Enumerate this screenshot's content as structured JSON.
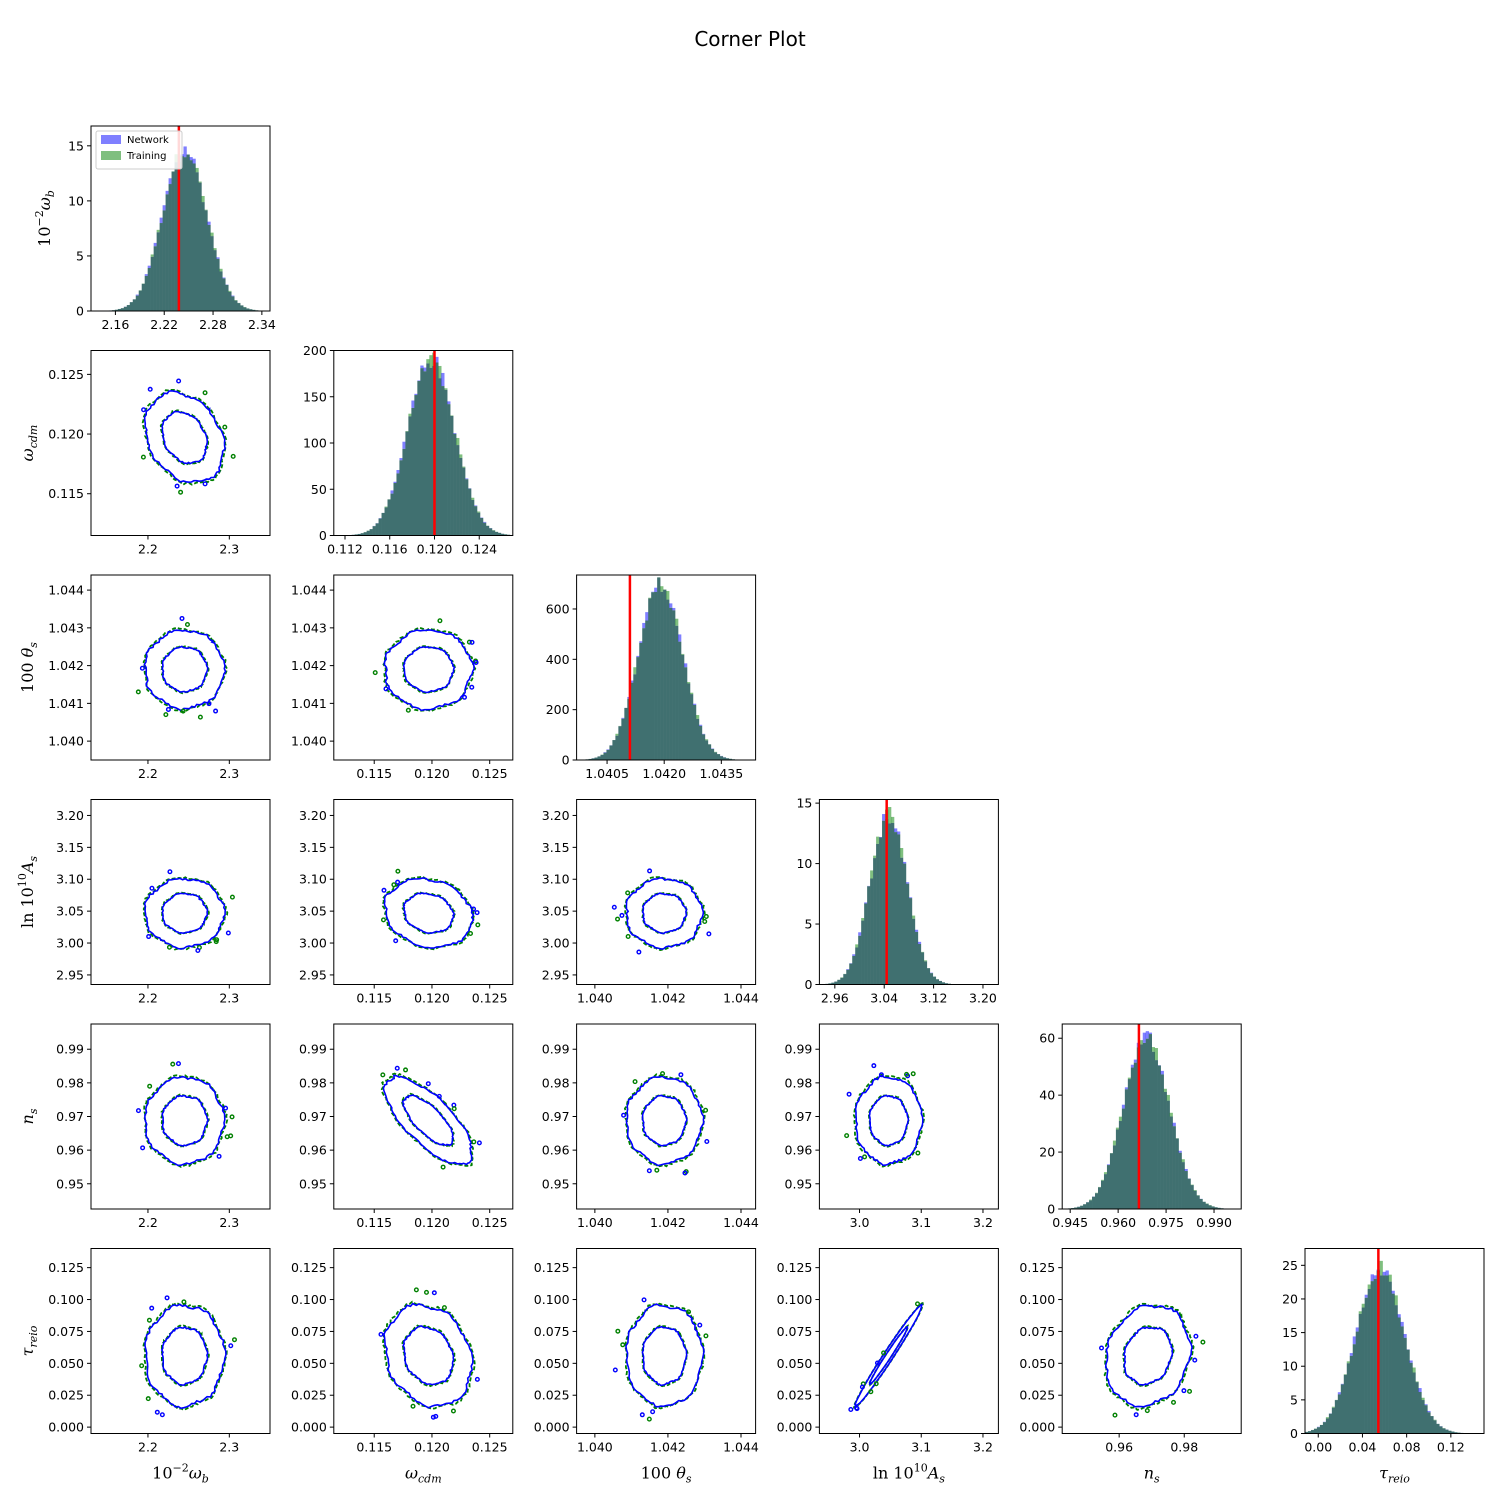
{
  "title": "Corner Plot",
  "chart_data": {
    "type": "corner",
    "title": "Corner Plot",
    "legend": {
      "placement": "top-left (first panel)",
      "entries": [
        {
          "label": "Network",
          "color": "#0000ff"
        },
        {
          "label": "Training",
          "color": "#008000"
        }
      ]
    },
    "colors": {
      "network": "#0000ff",
      "training": "#008000",
      "overlap": "#407070",
      "truth": "#ff0000"
    },
    "params": [
      {
        "key": "omega_b",
        "label_prefix": "10",
        "label_sup": "−2",
        "label_main": "ω",
        "label_sub": "b",
        "mean": 2.245,
        "sigma": 0.027,
        "truth": 2.238,
        "range": [
          2.13,
          2.35
        ],
        "diag_ylim": [
          0,
          16.8
        ],
        "diag_yticks": [
          "0",
          "5",
          "10",
          "15"
        ],
        "diag_ytick_vals": [
          0,
          5,
          10,
          15
        ],
        "diag_xticks": [
          "2.16",
          "2.22",
          "2.28",
          "2.34"
        ],
        "diag_xtick_vals": [
          2.16,
          2.22,
          2.28,
          2.34
        ],
        "diag_range": [
          2.13,
          2.35
        ],
        "peak": 14.7,
        "xticks": [
          "2.2",
          "2.3"
        ],
        "xtick_vals": [
          2.2,
          2.3
        ],
        "yticks": [],
        "ytick_vals": []
      },
      {
        "key": "omega_cdm",
        "label_prefix": "",
        "label_sup": "",
        "label_main": "ω",
        "label_sub": "cdm",
        "mean": 0.1197,
        "sigma": 0.0021,
        "truth": 0.12,
        "range": [
          0.1115,
          0.127
        ],
        "diag_ylim": [
          0,
          200
        ],
        "diag_yticks": [
          "0",
          "50",
          "100",
          "150",
          "200"
        ],
        "diag_ytick_vals": [
          0,
          50,
          100,
          150,
          200
        ],
        "diag_xticks": [
          "0.112",
          "0.116",
          "0.120",
          "0.124"
        ],
        "diag_xtick_vals": [
          0.112,
          0.116,
          0.12,
          0.124
        ],
        "diag_range": [
          0.111,
          0.127
        ],
        "peak": 190,
        "xticks": [
          "0.115",
          "0.120",
          "0.125"
        ],
        "xtick_vals": [
          0.115,
          0.12,
          0.125
        ],
        "yticks": [
          "0.115",
          "0.120",
          "0.125"
        ],
        "ytick_vals": [
          0.115,
          0.12,
          0.125
        ]
      },
      {
        "key": "theta_s",
        "label_prefix": "100",
        "label_sup": "",
        "label_main": "θ",
        "label_sub": "s",
        "mean": 1.0419,
        "sigma": 0.00058,
        "truth": 1.0411,
        "range": [
          1.0395,
          1.0444
        ],
        "diag_ylim": [
          0,
          735
        ],
        "diag_yticks": [
          "0",
          "200",
          "400",
          "600"
        ],
        "diag_ytick_vals": [
          0,
          200,
          400,
          600
        ],
        "diag_xticks": [
          "1.0405",
          "1.0420",
          "1.0435"
        ],
        "diag_xtick_vals": [
          1.0405,
          1.042,
          1.0435
        ],
        "diag_range": [
          1.0397,
          1.0444
        ],
        "peak": 700,
        "xticks": [
          "1.040",
          "1.042",
          "1.044"
        ],
        "xtick_vals": [
          1.04,
          1.042,
          1.044
        ],
        "yticks": [
          "1.040",
          "1.041",
          "1.042",
          "1.043",
          "1.044"
        ],
        "ytick_vals": [
          1.04,
          1.041,
          1.042,
          1.043,
          1.044
        ]
      },
      {
        "key": "ln10As",
        "label_prefix": "ln 10",
        "label_sup": "10",
        "label_main": "A",
        "label_sub": "s",
        "mean": 3.047,
        "sigma": 0.03,
        "truth": 3.044,
        "range": [
          2.935,
          3.225
        ],
        "diag_ylim": [
          0,
          15.3
        ],
        "diag_yticks": [
          "0",
          "5",
          "10",
          "15"
        ],
        "diag_ytick_vals": [
          0,
          5,
          10,
          15
        ],
        "diag_xticks": [
          "2.96",
          "3.04",
          "3.12",
          "3.20"
        ],
        "diag_xtick_vals": [
          2.96,
          3.04,
          3.12,
          3.2
        ],
        "diag_range": [
          2.935,
          3.225
        ],
        "peak": 14.0,
        "xticks": [
          "3.0",
          "3.1",
          "3.2"
        ],
        "xtick_vals": [
          3.0,
          3.1,
          3.2
        ],
        "yticks": [
          "2.95",
          "3.00",
          "3.05",
          "3.10",
          "3.15",
          "3.20"
        ],
        "ytick_vals": [
          2.95,
          3.0,
          3.05,
          3.1,
          3.15,
          3.2
        ]
      },
      {
        "key": "n_s",
        "label_prefix": "",
        "label_sup": "",
        "label_main": "n",
        "label_sub": "s",
        "mean": 0.9688,
        "sigma": 0.0072,
        "truth": 0.9665,
        "range": [
          0.9425,
          0.9975
        ],
        "diag_ylim": [
          0,
          65
        ],
        "diag_yticks": [
          "0",
          "20",
          "40",
          "60"
        ],
        "diag_ytick_vals": [
          0,
          20,
          40,
          60
        ],
        "diag_xticks": [
          "0.945",
          "0.960",
          "0.975",
          "0.990"
        ],
        "diag_xtick_vals": [
          0.945,
          0.96,
          0.975,
          0.99
        ],
        "diag_range": [
          0.9425,
          0.9985
        ],
        "peak": 60,
        "xticks": [
          "0.96",
          "0.98"
        ],
        "xtick_vals": [
          0.96,
          0.98
        ],
        "yticks": [
          "0.95",
          "0.96",
          "0.97",
          "0.98",
          "0.99"
        ],
        "ytick_vals": [
          0.95,
          0.96,
          0.97,
          0.98,
          0.99
        ]
      },
      {
        "key": "tau_reio",
        "label_prefix": "",
        "label_sup": "",
        "label_main": "τ",
        "label_sub": "reio",
        "mean": 0.056,
        "sigma": 0.022,
        "truth": 0.0544,
        "range": [
          -0.005,
          0.14
        ],
        "diag_ylim": [
          0,
          27.5
        ],
        "diag_yticks": [
          "0",
          "5",
          "10",
          "15",
          "20",
          "25"
        ],
        "diag_ytick_vals": [
          0,
          5,
          10,
          15,
          20,
          25
        ],
        "diag_xticks": [
          "0.00",
          "0.04",
          "0.08",
          "0.12"
        ],
        "diag_xtick_vals": [
          0.0,
          0.04,
          0.08,
          0.12
        ],
        "diag_range": [
          -0.012,
          0.15
        ],
        "peak": 24.5,
        "xticks": [],
        "xtick_vals": [],
        "yticks": [
          "0.000",
          "0.025",
          "0.050",
          "0.075",
          "0.100",
          "0.125"
        ],
        "ytick_vals": [
          0.0,
          0.025,
          0.05,
          0.075,
          0.1,
          0.125
        ]
      }
    ],
    "correlations": [
      {
        "i": 1,
        "j": 0,
        "rho": -0.25
      },
      {
        "i": 2,
        "j": 0,
        "rho": 0.0
      },
      {
        "i": 2,
        "j": 1,
        "rho": 0.0
      },
      {
        "i": 3,
        "j": 0,
        "rho": 0.0
      },
      {
        "i": 3,
        "j": 1,
        "rho": -0.15
      },
      {
        "i": 3,
        "j": 2,
        "rho": 0.0
      },
      {
        "i": 4,
        "j": 0,
        "rho": 0.0
      },
      {
        "i": 4,
        "j": 1,
        "rho": -0.72
      },
      {
        "i": 4,
        "j": 2,
        "rho": 0.0
      },
      {
        "i": 4,
        "j": 3,
        "rho": 0.0
      },
      {
        "i": 5,
        "j": 0,
        "rho": 0.0
      },
      {
        "i": 5,
        "j": 1,
        "rho": -0.18
      },
      {
        "i": 5,
        "j": 2,
        "rho": 0.0
      },
      {
        "i": 5,
        "j": 3,
        "rho": 0.985
      },
      {
        "i": 5,
        "j": 4,
        "rho": 0.15
      }
    ],
    "contour_levels_sigma": [
      1,
      2
    ]
  }
}
